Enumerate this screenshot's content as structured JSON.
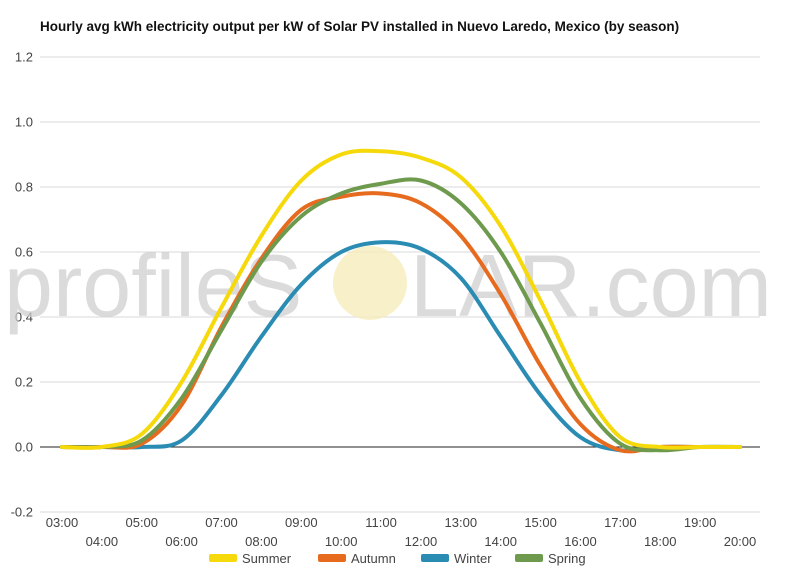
{
  "watermark": {
    "left_text": "profileS",
    "right_text": "LAR.com"
  },
  "chart_data": {
    "type": "line",
    "title": "Hourly avg kWh electricity output per kW of Solar PV installed in Nuevo Laredo, Mexico (by season)",
    "x": [
      "03:00",
      "04:00",
      "05:00",
      "06:00",
      "07:00",
      "08:00",
      "09:00",
      "10:00",
      "11:00",
      "12:00",
      "13:00",
      "14:00",
      "15:00",
      "16:00",
      "17:00",
      "18:00",
      "19:00",
      "20:00"
    ],
    "ylim": [
      -0.2,
      1.2
    ],
    "yticks": [
      -0.2,
      0.0,
      0.2,
      0.4,
      0.6,
      0.8,
      1.0,
      1.2
    ],
    "grid": true,
    "legend_position": "bottom",
    "series": [
      {
        "name": "Summer",
        "color": "#f5d90a",
        "values": [
          0.0,
          0.0,
          0.04,
          0.2,
          0.43,
          0.65,
          0.82,
          0.9,
          0.91,
          0.89,
          0.83,
          0.68,
          0.45,
          0.2,
          0.03,
          0.0,
          0.0,
          0.0
        ]
      },
      {
        "name": "Autumn",
        "color": "#e66b1f",
        "values": [
          0.0,
          0.0,
          0.01,
          0.13,
          0.37,
          0.58,
          0.73,
          0.77,
          0.78,
          0.75,
          0.65,
          0.47,
          0.25,
          0.07,
          -0.01,
          0.0,
          0.0,
          0.0
        ]
      },
      {
        "name": "Winter",
        "color": "#2a8bb3",
        "values": [
          0.0,
          0.0,
          0.0,
          0.02,
          0.16,
          0.34,
          0.5,
          0.6,
          0.63,
          0.61,
          0.52,
          0.34,
          0.16,
          0.03,
          -0.01,
          0.0,
          0.0,
          0.0
        ]
      },
      {
        "name": "Spring",
        "color": "#6e9a4e",
        "values": [
          0.0,
          0.0,
          0.02,
          0.15,
          0.36,
          0.57,
          0.71,
          0.78,
          0.81,
          0.82,
          0.75,
          0.6,
          0.38,
          0.15,
          0.01,
          -0.01,
          0.0,
          0.0
        ]
      }
    ]
  }
}
